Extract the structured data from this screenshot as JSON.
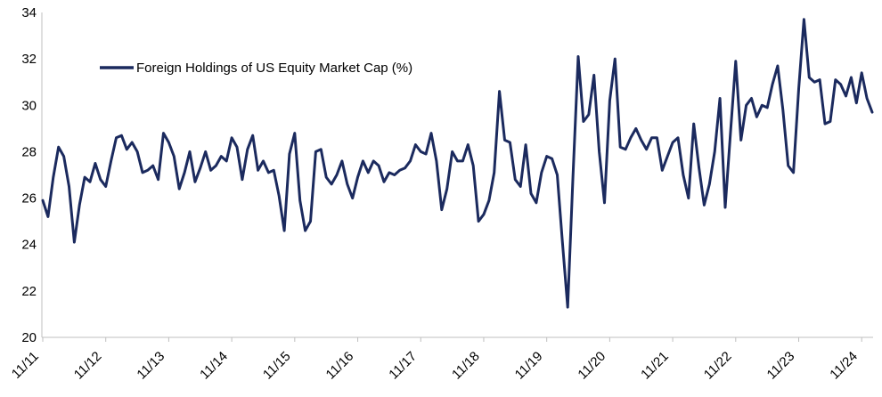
{
  "chart_data": {
    "type": "line",
    "title": "",
    "xlabel": "",
    "ylabel": "",
    "ylim": [
      20,
      34
    ],
    "yticks": [
      20,
      22,
      24,
      26,
      28,
      30,
      32,
      34
    ],
    "xticks": [
      "11/11",
      "11/12",
      "11/13",
      "11/14",
      "11/15",
      "11/16",
      "11/17",
      "11/18",
      "11/19",
      "11/20",
      "11/21",
      "11/22",
      "11/23",
      "11/24"
    ],
    "grid": false,
    "legend_position": "top-left",
    "line_color": "#1b2a5e",
    "series": [
      {
        "name": "Foreign Holdings of US Equity Market Cap (%)",
        "values": [
          25.9,
          25.2,
          26.9,
          28.2,
          27.8,
          26.5,
          24.1,
          25.7,
          26.9,
          26.7,
          27.5,
          26.8,
          26.5,
          27.6,
          28.6,
          28.7,
          28.1,
          28.4,
          28.0,
          27.1,
          27.2,
          27.4,
          26.8,
          28.8,
          28.4,
          27.8,
          26.4,
          27.1,
          28.0,
          26.7,
          27.3,
          28.0,
          27.2,
          27.4,
          27.8,
          27.6,
          28.6,
          28.2,
          26.8,
          28.1,
          28.7,
          27.2,
          27.6,
          27.1,
          27.2,
          26.1,
          24.6,
          27.9,
          28.8,
          25.9,
          24.6,
          25.0,
          28.0,
          28.1,
          26.9,
          26.6,
          27.0,
          27.6,
          26.6,
          26.0,
          26.9,
          27.6,
          27.1,
          27.6,
          27.4,
          26.7,
          27.1,
          27.0,
          27.2,
          27.3,
          27.6,
          28.3,
          28.0,
          27.9,
          28.8,
          27.6,
          25.5,
          26.4,
          28.0,
          27.6,
          27.6,
          28.3,
          27.4,
          25.0,
          25.3,
          25.9,
          27.1,
          30.6,
          28.5,
          28.4,
          26.8,
          26.5,
          28.3,
          26.2,
          25.8,
          27.1,
          27.8,
          27.7,
          27.0,
          24.1,
          21.3,
          26.9,
          32.1,
          29.3,
          29.6,
          31.3,
          28.0,
          25.8,
          30.2,
          32.0,
          28.2,
          28.1,
          28.6,
          29.0,
          28.5,
          28.1,
          28.6,
          28.6,
          27.2,
          27.8,
          28.4,
          28.6,
          27.0,
          26.0,
          29.2,
          27.3,
          25.7,
          26.6,
          28.0,
          30.3,
          25.6,
          28.8,
          31.9,
          28.5,
          30.0,
          30.3,
          29.5,
          30.0,
          29.9,
          30.9,
          31.7,
          29.8,
          27.4,
          27.1,
          30.7,
          33.7,
          31.2,
          31.0,
          31.1,
          29.2,
          29.3,
          31.1,
          30.9,
          30.4,
          31.2,
          30.1,
          31.4,
          30.3,
          29.7
        ]
      }
    ]
  }
}
